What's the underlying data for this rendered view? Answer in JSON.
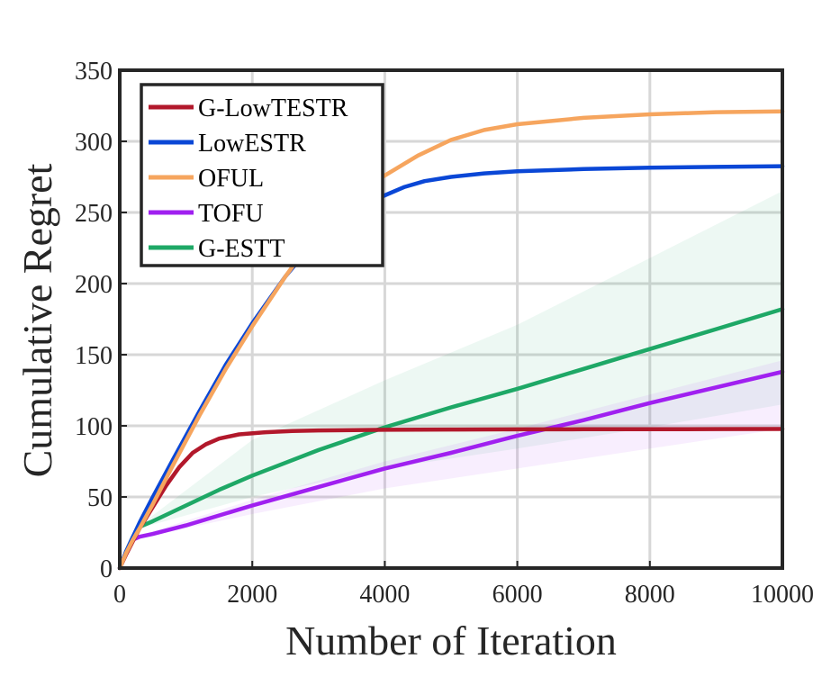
{
  "chart_data": {
    "type": "line",
    "title": "",
    "xlabel": "Number of Iteration",
    "ylabel": "Cumulative Regret",
    "xlim": [
      0,
      10000
    ],
    "ylim": [
      0,
      350
    ],
    "xticks": [
      0,
      2000,
      4000,
      6000,
      8000,
      10000
    ],
    "yticks": [
      0,
      50,
      100,
      150,
      200,
      250,
      300,
      350
    ],
    "xtick_labels": [
      "0",
      "2000",
      "4000",
      "6000",
      "8000",
      "10000"
    ],
    "ytick_labels": [
      "0",
      "50",
      "100",
      "150",
      "200",
      "250",
      "300",
      "350"
    ],
    "grid": true,
    "legend_position": "top-left",
    "series": [
      {
        "name": "G-LowTESTR",
        "color": "#b2182b",
        "x": [
          0,
          100,
          200,
          300,
          500,
          700,
          900,
          1100,
          1300,
          1500,
          1800,
          2200,
          2600,
          3000,
          4000,
          5000,
          6000,
          7000,
          8000,
          9000,
          10000
        ],
        "y": [
          0,
          10,
          19,
          28,
          43,
          58,
          71,
          81,
          87,
          91,
          94,
          95.5,
          96.3,
          96.8,
          97.2,
          97.4,
          97.5,
          97.6,
          97.6,
          97.7,
          97.8
        ]
      },
      {
        "name": "LowESTR",
        "color": "#0a47d6",
        "x": [
          0,
          100,
          200,
          300,
          500,
          800,
          1200,
          1600,
          2000,
          2500,
          3000,
          3500,
          4000,
          4300,
          4600,
          5000,
          5500,
          6000,
          7000,
          8000,
          9000,
          10000
        ],
        "y": [
          0,
          12,
          22,
          32,
          50,
          76,
          110,
          143,
          172,
          205,
          233,
          250,
          262,
          268,
          272,
          275,
          277.5,
          279,
          280.5,
          281.5,
          282,
          282.5
        ]
      },
      {
        "name": "OFUL",
        "color": "#f6a55e",
        "x": [
          0,
          100,
          200,
          300,
          500,
          800,
          1200,
          1600,
          2000,
          2500,
          3000,
          3500,
          4000,
          4500,
          5000,
          5500,
          6000,
          7000,
          8000,
          9000,
          10000
        ],
        "y": [
          0,
          11,
          20,
          28,
          45,
          72,
          107,
          140,
          170,
          205,
          237,
          260,
          276,
          290,
          301,
          308,
          312,
          316.5,
          319,
          320.5,
          321
        ]
      },
      {
        "name": "TOFU",
        "color": "#a020f0",
        "x": [
          0,
          100,
          200,
          300,
          500,
          1000,
          2000,
          3000,
          4000,
          5000,
          6000,
          7000,
          8000,
          9000,
          10000
        ],
        "y": [
          0,
          12,
          20,
          22,
          24,
          30,
          44,
          57,
          70,
          81,
          93,
          104,
          116,
          127,
          138
        ]
      },
      {
        "name": "G-ESTT",
        "color": "#1ea866",
        "x": [
          0,
          100,
          200,
          300,
          500,
          1000,
          1500,
          2000,
          3000,
          4000,
          5000,
          6000,
          7000,
          8000,
          9000,
          10000
        ],
        "y": [
          0,
          12,
          22,
          29,
          33,
          44,
          55,
          65,
          83,
          99,
          113,
          126,
          140,
          154,
          168,
          182
        ]
      }
    ],
    "bands": [
      {
        "name": "G-ESTT band",
        "color": "#1ea866",
        "x": [
          300,
          2000,
          4000,
          6000,
          8000,
          10000
        ],
        "upper": [
          30,
          90,
          132,
          171,
          218,
          265
        ],
        "lower": [
          28,
          50,
          70,
          84,
          99,
          115
        ]
      },
      {
        "name": "TOFU band",
        "color": "#a020f0",
        "x": [
          300,
          2000,
          4000,
          6000,
          8000,
          10000
        ],
        "upper": [
          23,
          48,
          75,
          98,
          122,
          146
        ],
        "lower": [
          21,
          38,
          56,
          70,
          84,
          98
        ]
      }
    ]
  }
}
